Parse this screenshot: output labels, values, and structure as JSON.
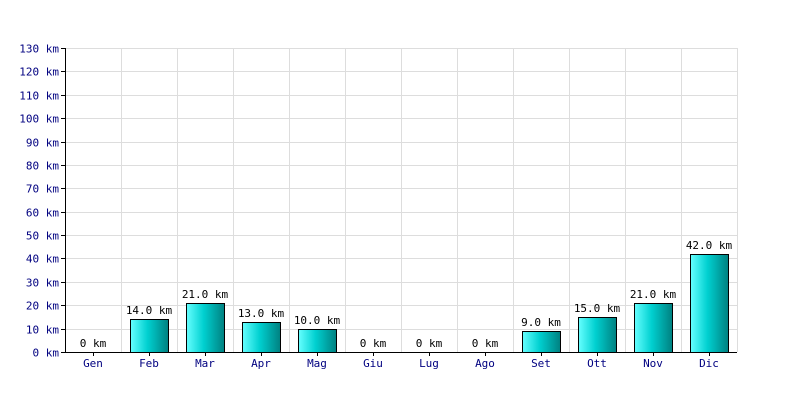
{
  "chart_data": {
    "type": "bar",
    "title": "",
    "xlabel": "",
    "ylabel": "",
    "categories": [
      "Gen",
      "Feb",
      "Mar",
      "Apr",
      "Mag",
      "Giu",
      "Lug",
      "Ago",
      "Set",
      "Ott",
      "Nov",
      "Dic"
    ],
    "values": [
      0,
      14,
      21,
      13,
      10,
      0,
      0,
      0,
      9,
      15,
      21,
      42
    ],
    "data_labels": [
      "0 km",
      "14.0 km",
      "21.0 km",
      "13.0 km",
      "10.0 km",
      "0 km",
      "0 km",
      "0 km",
      "9.0 km",
      "15.0 km",
      "21.0 km",
      "42.0 km"
    ],
    "ylim": [
      0,
      130
    ],
    "yticks": [
      0,
      10,
      20,
      30,
      40,
      50,
      60,
      70,
      80,
      90,
      100,
      110,
      120,
      130
    ],
    "ytick_labels": [
      "0 km",
      "10 km",
      "20 km",
      "30 km",
      "40 km",
      "50 km",
      "60 km",
      "70 km",
      "80 km",
      "90 km",
      "100 km",
      "110 km",
      "120 km",
      "130 km"
    ],
    "grid": true,
    "legend": "none",
    "colors": {
      "bar_light": "#66ffff",
      "bar_mid": "#00d0d0",
      "bar_dark": "#008080",
      "bar_outline": "#000000",
      "grid": "#dddddd",
      "axis": "#000000",
      "tick_text": "#000080"
    }
  }
}
